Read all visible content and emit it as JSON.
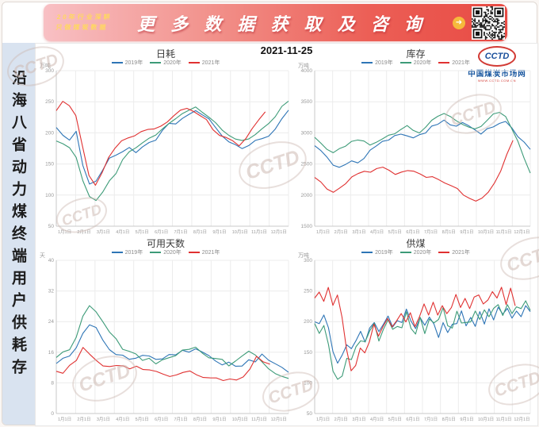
{
  "banner": {
    "tagline_line1": "20年行业深耕",
    "tagline_line2": "只做煤炭数据",
    "title": "更 多 数 据 获 取 及 咨 询",
    "arrow_icon": "➜"
  },
  "sidebar": {
    "vertical_title": "沿海八省动力煤终端用户供耗存"
  },
  "header": {
    "date": "2021-11-25"
  },
  "logo": {
    "name": "CCTD",
    "site": "中国煤炭市场网",
    "url_text": "WWW.CCTD.COM.CN"
  },
  "watermark": {
    "text": "CCTD"
  },
  "colors": {
    "y2019": "#2e75b6",
    "y2020": "#3d9b78",
    "y2021": "#e03131",
    "grid": "#ececec",
    "axis": "#c9c9c9",
    "tick_text": "#999999"
  },
  "chart_data": [
    {
      "type": "line",
      "title": "日耗",
      "unit": "万吨",
      "ylim": [
        50,
        300
      ],
      "yticks": [
        50,
        100,
        150,
        200,
        250,
        300
      ],
      "x_tick_labels": [
        "1月1日",
        "2月1日",
        "3月1日",
        "4月1日",
        "5月1日",
        "6月1日",
        "7月1日",
        "8月1日",
        "9月1日",
        "10月1日",
        "11月1日",
        "12月1日"
      ],
      "legend_position": "top",
      "series": [
        {
          "name": "2019年",
          "color": "#2e75b6",
          "x_end": 1.0,
          "noise": 2,
          "values": [
            210,
            196,
            188,
            204,
            148,
            116,
            124,
            142,
            158,
            164,
            170,
            176,
            170,
            179,
            186,
            190,
            204,
            214,
            216,
            224,
            230,
            236,
            230,
            224,
            210,
            196,
            186,
            181,
            176,
            181,
            186,
            191,
            196,
            206,
            221,
            236
          ]
        },
        {
          "name": "2020年",
          "color": "#3d9b78",
          "x_end": 1.0,
          "noise": 2,
          "values": [
            186,
            181,
            176,
            162,
            122,
            96,
            91,
            106,
            121,
            136,
            156,
            171,
            176,
            186,
            191,
            196,
            206,
            216,
            221,
            231,
            236,
            241,
            234,
            226,
            216,
            206,
            196,
            191,
            186,
            191,
            196,
            206,
            216,
            226,
            241,
            252
          ]
        },
        {
          "name": "2021年",
          "color": "#e03131",
          "x_end": 0.9,
          "noise": 2,
          "values": [
            236,
            251,
            244,
            229,
            181,
            131,
            116,
            136,
            161,
            176,
            186,
            191,
            196,
            201,
            206,
            206,
            211,
            216,
            226,
            236,
            241,
            234,
            229,
            221,
            206,
            196,
            191,
            186,
            181,
            191,
            206,
            221,
            233
          ]
        }
      ]
    },
    {
      "type": "line",
      "title": "库存",
      "unit": "万吨",
      "ylim": [
        1500,
        4000
      ],
      "yticks": [
        1500,
        2000,
        2500,
        3000,
        3500,
        4000
      ],
      "x_tick_labels": [
        "1月1日",
        "2月1日",
        "3月1日",
        "4月1日",
        "5月1日",
        "6月1日",
        "7月1日",
        "8月1日",
        "9月1日",
        "10月1日",
        "11月1日",
        "12月1日"
      ],
      "legend_position": "top",
      "series": [
        {
          "name": "2019年",
          "color": "#2e75b6",
          "x_end": 1.0,
          "noise": 22,
          "values": [
            2780,
            2700,
            2600,
            2500,
            2450,
            2500,
            2550,
            2500,
            2600,
            2700,
            2800,
            2850,
            2900,
            2950,
            3000,
            2950,
            2900,
            2950,
            3000,
            3100,
            3150,
            3200,
            3150,
            3100,
            3150,
            3100,
            3050,
            3000,
            3050,
            3100,
            3150,
            3200,
            3100,
            2950,
            2850,
            2750
          ]
        },
        {
          "name": "2020年",
          "color": "#3d9b78",
          "x_end": 1.0,
          "noise": 22,
          "values": [
            2950,
            2850,
            2750,
            2700,
            2750,
            2800,
            2850,
            2900,
            2850,
            2800,
            2850,
            2900,
            2950,
            3000,
            3050,
            3100,
            3050,
            3000,
            3100,
            3200,
            3250,
            3300,
            3250,
            3200,
            3150,
            3100,
            3050,
            3100,
            3200,
            3300,
            3350,
            3250,
            3050,
            2850,
            2600,
            2350
          ]
        },
        {
          "name": "2021年",
          "color": "#e03131",
          "x_end": 0.92,
          "noise": 18,
          "values": [
            2280,
            2200,
            2100,
            2050,
            2100,
            2200,
            2300,
            2350,
            2400,
            2380,
            2420,
            2450,
            2400,
            2350,
            2380,
            2400,
            2380,
            2350,
            2300,
            2280,
            2250,
            2200,
            2150,
            2100,
            2000,
            1950,
            1900,
            1950,
            2050,
            2200,
            2400,
            2650,
            2880
          ]
        }
      ]
    },
    {
      "type": "line",
      "title": "可用天数",
      "unit": "天",
      "ylim": [
        0,
        40
      ],
      "yticks": [
        0,
        8,
        16,
        24,
        32,
        40
      ],
      "x_tick_labels": [
        "1月1日",
        "2月1日",
        "3月1日",
        "4月1日",
        "5月1日",
        "6月1日",
        "7月1日",
        "8月1日",
        "9月1日",
        "10月1日",
        "11月1日",
        "12月1日"
      ],
      "legend_position": "top",
      "series": [
        {
          "name": "2019年",
          "color": "#2e75b6",
          "x_end": 1.0,
          "noise": 0.6,
          "values": [
            13,
            14,
            15,
            17,
            21,
            23,
            22,
            19,
            17,
            16,
            15,
            14,
            14,
            15,
            15,
            14,
            14,
            15,
            15,
            16,
            16,
            17,
            16,
            15,
            14,
            13,
            13,
            12,
            13,
            14,
            14,
            15,
            14,
            13,
            12,
            11
          ]
        },
        {
          "name": "2020年",
          "color": "#3d9b78",
          "x_end": 1.0,
          "noise": 0.6,
          "values": [
            15,
            16,
            17,
            20,
            25,
            28,
            27,
            24,
            21,
            19,
            17,
            16,
            15,
            14,
            14,
            13,
            14,
            15,
            15,
            16,
            17,
            17,
            16,
            15,
            14,
            14,
            13,
            14,
            15,
            16,
            15,
            14,
            12,
            11,
            10,
            9.5
          ]
        },
        {
          "name": "2021年",
          "color": "#e03131",
          "x_end": 0.92,
          "noise": 0.6,
          "values": [
            11,
            11,
            12,
            14,
            17,
            16,
            14,
            13,
            12,
            12,
            13,
            12,
            12,
            11,
            11,
            11,
            10,
            10,
            10,
            11,
            11,
            10,
            10,
            9,
            9,
            9,
            8.5,
            9,
            10,
            12,
            15,
            14,
            13
          ]
        }
      ]
    },
    {
      "type": "line",
      "title": "供煤",
      "unit": "万吨",
      "ylim": [
        50,
        300
      ],
      "yticks": [
        50,
        100,
        150,
        200,
        250,
        300
      ],
      "x_tick_labels": [
        "1月1日",
        "2月1日",
        "3月1日",
        "4月1日",
        "5月1日",
        "6月1日",
        "7月1日",
        "8月1日",
        "9月1日",
        "10月1日",
        "11月1日",
        "12月1日"
      ],
      "legend_position": "top",
      "series": [
        {
          "name": "2019年",
          "color": "#2e75b6",
          "x_end": 1.0,
          "noise": 8,
          "values": [
            205,
            190,
            210,
            185,
            150,
            125,
            140,
            165,
            150,
            175,
            190,
            170,
            185,
            200,
            180,
            195,
            210,
            190,
            205,
            195,
            215,
            200,
            185,
            205,
            190,
            210,
            195,
            180,
            200,
            185,
            200,
            190,
            210,
            195,
            205,
            190,
            210,
            195,
            215,
            200,
            220,
            205,
            215,
            200,
            220,
            210,
            225,
            210
          ]
        },
        {
          "name": "2020年",
          "color": "#3d9b78",
          "x_end": 1.0,
          "noise": 8,
          "values": [
            190,
            175,
            195,
            160,
            120,
            100,
            115,
            140,
            130,
            155,
            175,
            160,
            180,
            195,
            175,
            190,
            205,
            185,
            200,
            190,
            210,
            195,
            180,
            200,
            185,
            205,
            190,
            200,
            215,
            200,
            190,
            210,
            195,
            205,
            195,
            215,
            205,
            220,
            205,
            215,
            230,
            215,
            225,
            210,
            230,
            215,
            230,
            220
          ]
        },
        {
          "name": "2021年",
          "color": "#e03131",
          "x_end": 0.93,
          "noise": 8,
          "values": [
            240,
            255,
            235,
            250,
            230,
            245,
            200,
            150,
            120,
            135,
            160,
            145,
            170,
            190,
            175,
            195,
            210,
            190,
            205,
            220,
            200,
            215,
            195,
            215,
            230,
            210,
            225,
            205,
            225,
            210,
            220,
            240,
            220,
            235,
            215,
            235,
            245,
            225,
            240,
            255,
            235,
            250,
            230,
            250,
            225
          ]
        }
      ]
    }
  ]
}
